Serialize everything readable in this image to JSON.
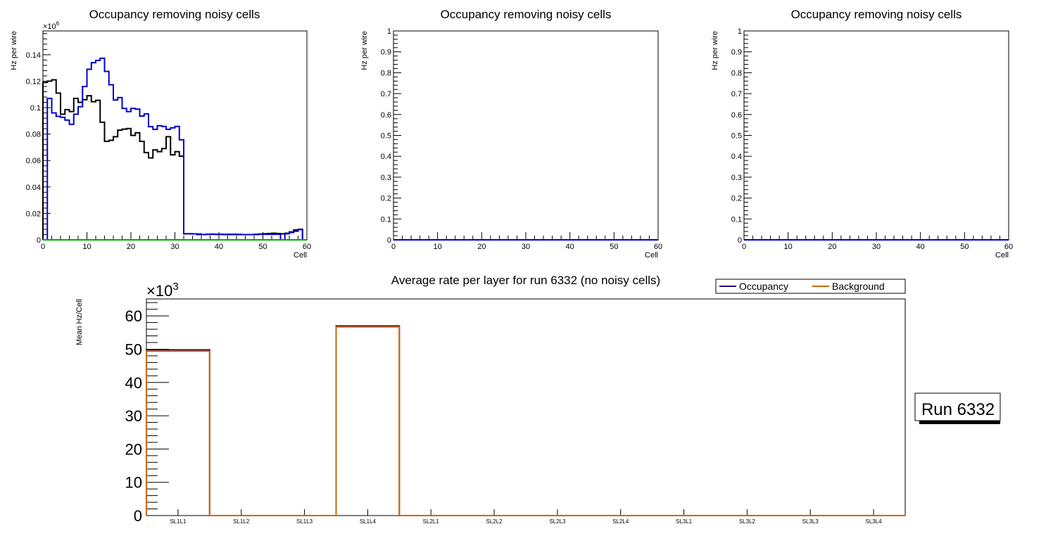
{
  "chart_data": [
    {
      "type": "line",
      "title": "Occupancy removing noisy cells",
      "xlabel": "Cell",
      "ylabel": "Hz per wire",
      "y_exponent": "×10",
      "y_exponent_power": "6",
      "xlim": [
        0,
        60
      ],
      "ylim": [
        0,
        0.158
      ],
      "x_ticks": [
        0,
        10,
        20,
        30,
        40,
        50,
        60
      ],
      "y_ticks": [
        0,
        0.02,
        0.04,
        0.06,
        0.08,
        0.1,
        0.12,
        0.14
      ],
      "series": [
        {
          "name": "black",
          "color": "#000000",
          "values": [
            0.119,
            0.12,
            0.121,
            0.111,
            0.095,
            0.0985,
            0.097,
            0.107,
            0.104,
            0.106,
            0.109,
            0.1045,
            0.1055,
            0.089,
            0.0745,
            0.0753,
            0.078,
            0.083,
            0.0837,
            0.0842,
            0.079,
            0.081,
            0.0745,
            0.066,
            0.062,
            0.068,
            0.0667,
            0.069,
            0.078,
            0.0643,
            0.0667,
            0.0633,
            0.0046,
            0.0046,
            0.0045,
            0.0044,
            0.004,
            0.0042,
            0.0043,
            0.0042,
            0.0042,
            0.0041,
            0.0042,
            0.0042,
            0.0041,
            0.004,
            0.004,
            0.004,
            0.0042,
            0.0044,
            0.0046,
            0.0048,
            0.005,
            0.0048,
            0.0045,
            0.005,
            0.006,
            0.0075,
            0.008,
            0
          ]
        },
        {
          "name": "blue",
          "color": "#0000cc",
          "values": [
            0,
            0.107,
            0.096,
            0.0934,
            0.0927,
            0.0906,
            0.0874,
            0.095,
            0.1007,
            0.116,
            0.129,
            0.134,
            0.1357,
            0.1373,
            0.1274,
            0.1173,
            0.1058,
            0.1076,
            0.0994,
            0.097,
            0.0994,
            0.0989,
            0.0936,
            0.0953,
            0.0856,
            0.0836,
            0.0863,
            0.0858,
            0.0836,
            0.0847,
            0.0858,
            0.0757,
            0.0046,
            0.0046,
            0.0045,
            0.004,
            0.004,
            0.0042,
            0.0042,
            0.0041,
            0.0041,
            0.004,
            0.004,
            0.004,
            0.004,
            0.004,
            0.004,
            0.004,
            0.004,
            0.0042,
            0.0042,
            0.0042,
            0.0042,
            0.0042,
            0,
            0.0046,
            0.0055,
            0.0065,
            0.0078,
            0
          ]
        },
        {
          "name": "green",
          "color": "#00aa00",
          "values": [
            0,
            0,
            0,
            0,
            0,
            0,
            0,
            0,
            0,
            0,
            0,
            0,
            0,
            0,
            0,
            0,
            0,
            0,
            0,
            0,
            0,
            0,
            0,
            0,
            0,
            0,
            0,
            0,
            0,
            0,
            0,
            0,
            0,
            0,
            0,
            0,
            0,
            0,
            0,
            0,
            0,
            0,
            0,
            0,
            0,
            0,
            0,
            0,
            0,
            0,
            0,
            0,
            0,
            0,
            0,
            0,
            0,
            0,
            0,
            0
          ]
        }
      ]
    },
    {
      "type": "line",
      "title": "Occupancy removing noisy cells",
      "xlabel": "Cell",
      "ylabel": "Hz per wire",
      "xlim": [
        0,
        60
      ],
      "ylim": [
        0,
        1
      ],
      "x_ticks": [
        0,
        10,
        20,
        30,
        40,
        50,
        60
      ],
      "y_ticks": [
        0,
        0.1,
        0.2,
        0.3,
        0.4,
        0.5,
        0.6,
        0.7,
        0.8,
        0.9,
        1
      ],
      "series": [
        {
          "name": "blue",
          "color": "#0000cc",
          "values": "all-zero"
        }
      ]
    },
    {
      "type": "line",
      "title": "Occupancy removing noisy cells",
      "xlabel": "Cell",
      "ylabel": "Hz per wire",
      "xlim": [
        0,
        60
      ],
      "ylim": [
        0,
        1
      ],
      "x_ticks": [
        0,
        10,
        20,
        30,
        40,
        50,
        60
      ],
      "y_ticks": [
        0,
        0.1,
        0.2,
        0.3,
        0.4,
        0.5,
        0.6,
        0.7,
        0.8,
        0.9,
        1
      ],
      "series": [
        {
          "name": "blue",
          "color": "#0000cc",
          "values": "all-zero"
        }
      ]
    },
    {
      "type": "bar",
      "title": "Average rate per layer for run 6332 (no noisy cells)",
      "ylabel": "Mean Hz/Cell",
      "y_exponent": "×10",
      "y_exponent_power": "3",
      "ylim": [
        0,
        65.1
      ],
      "y_ticks": [
        0,
        10,
        20,
        30,
        40,
        50,
        60
      ],
      "categories": [
        "SL1L1",
        "SL1L2",
        "SL1L3",
        "SL1L4",
        "SL2L1",
        "SL2L2",
        "SL2L3",
        "SL2L4",
        "SL3L1",
        "SL3L2",
        "SL3L3",
        "SL3L4"
      ],
      "series": [
        {
          "name": "Occupancy",
          "color": "#2a0a7a",
          "values": [
            49.8,
            0,
            0,
            57.0,
            0,
            0,
            0,
            0,
            0,
            0,
            0,
            0
          ]
        },
        {
          "name": "Background",
          "color": "#cc6600",
          "values": [
            49.4,
            0,
            0,
            56.7,
            0,
            0,
            0,
            0,
            0,
            0,
            0,
            0
          ]
        }
      ],
      "legend": "top-right",
      "annotation": "Run 6332"
    }
  ]
}
